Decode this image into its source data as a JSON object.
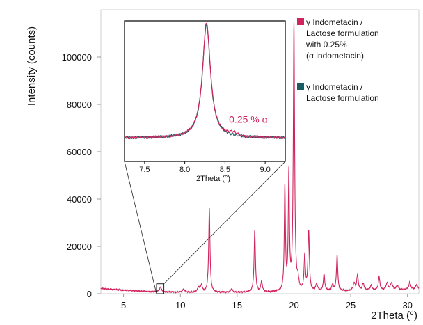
{
  "chart_data": [
    {
      "type": "line",
      "role": "main",
      "xlabel": "2Theta (°)",
      "ylabel": "Intensity (counts)",
      "xlim": [
        3.0,
        31.0
      ],
      "ylim": [
        0,
        120000
      ],
      "xticks": [
        5,
        10,
        15,
        20,
        25,
        30
      ],
      "yticks": [
        0,
        20000,
        40000,
        60000,
        80000,
        100000
      ],
      "grid": false,
      "legend_position": "top-right",
      "series": [
        {
          "name": "γ Indometacin / Lactose formulation with 0.25% (α indometacin)",
          "color": "#d0245c",
          "baseline": [
            [
              3.0,
              2200
            ],
            [
              5.0,
              1500
            ],
            [
              8.0,
              700
            ],
            [
              12.0,
              500
            ],
            [
              20.0,
              600
            ],
            [
              25.0,
              1200
            ],
            [
              31.0,
              1800
            ]
          ],
          "peaks": [
            {
              "x": 8.25,
              "y": 2000,
              "w": 0.12
            },
            {
              "x": 10.3,
              "y": 1400,
              "w": 0.1
            },
            {
              "x": 11.6,
              "y": 2000,
              "w": 0.1
            },
            {
              "x": 11.85,
              "y": 3000,
              "w": 0.1
            },
            {
              "x": 12.55,
              "y": 35500,
              "w": 0.07
            },
            {
              "x": 14.5,
              "y": 1400,
              "w": 0.1
            },
            {
              "x": 16.55,
              "y": 26000,
              "w": 0.07
            },
            {
              "x": 17.15,
              "y": 4500,
              "w": 0.08
            },
            {
              "x": 19.2,
              "y": 44000,
              "w": 0.06
            },
            {
              "x": 19.55,
              "y": 49000,
              "w": 0.06
            },
            {
              "x": 20.0,
              "y": 113000,
              "w": 0.07
            },
            {
              "x": 20.35,
              "y": 4000,
              "w": 0.08
            },
            {
              "x": 20.95,
              "y": 14500,
              "w": 0.07
            },
            {
              "x": 21.3,
              "y": 25500,
              "w": 0.07
            },
            {
              "x": 22.0,
              "y": 3000,
              "w": 0.1
            },
            {
              "x": 22.65,
              "y": 7000,
              "w": 0.08
            },
            {
              "x": 23.4,
              "y": 2500,
              "w": 0.1
            },
            {
              "x": 23.8,
              "y": 15000,
              "w": 0.07
            },
            {
              "x": 25.3,
              "y": 3000,
              "w": 0.1
            },
            {
              "x": 25.6,
              "y": 6500,
              "w": 0.08
            },
            {
              "x": 26.1,
              "y": 2800,
              "w": 0.1
            },
            {
              "x": 26.8,
              "y": 2000,
              "w": 0.1
            },
            {
              "x": 27.5,
              "y": 5500,
              "w": 0.08
            },
            {
              "x": 28.2,
              "y": 3000,
              "w": 0.1
            },
            {
              "x": 28.6,
              "y": 3000,
              "w": 0.1
            },
            {
              "x": 29.1,
              "y": 1800,
              "w": 0.1
            },
            {
              "x": 30.2,
              "y": 3000,
              "w": 0.1
            },
            {
              "x": 30.8,
              "y": 2000,
              "w": 0.1
            }
          ]
        },
        {
          "name": "γ Indometacin / Lactose formulation",
          "color": "#1a5c63"
        }
      ]
    },
    {
      "type": "line",
      "role": "inset",
      "xlabel": "2Theta (°)",
      "ylabel": "",
      "xlim": [
        7.25,
        9.25
      ],
      "ylim": [
        -1.0,
        5.0
      ],
      "xticks": [
        7.5,
        8.0,
        8.5,
        9.0
      ],
      "yticks": [],
      "annotation": "0.25 % α",
      "zoom_region_main": {
        "x": [
          7.9,
          8.55
        ]
      },
      "series": [
        {
          "name": "γ Indometacin / Lactose formulation with 0.25% (α indometacin)",
          "color": "#d0245c",
          "peak_x": 8.27,
          "peak_height": 4.9,
          "peak_width": 0.06,
          "extra_peak_x": 8.6,
          "extra_peak_height": 0.13
        },
        {
          "name": "γ Indometacin / Lactose formulation",
          "color": "#1a5c63",
          "peak_x": 8.27,
          "peak_height": 4.85,
          "peak_width": 0.06
        }
      ]
    }
  ],
  "legend": [
    {
      "lines": [
        "γ Indometacin /",
        "Lactose formulation",
        "with 0.25%",
        "(α indometacin)"
      ],
      "color": "#d0245c"
    },
    {
      "lines": [
        "γ Indometacin /",
        "Lactose formulation"
      ],
      "color": "#1a5c63"
    }
  ]
}
